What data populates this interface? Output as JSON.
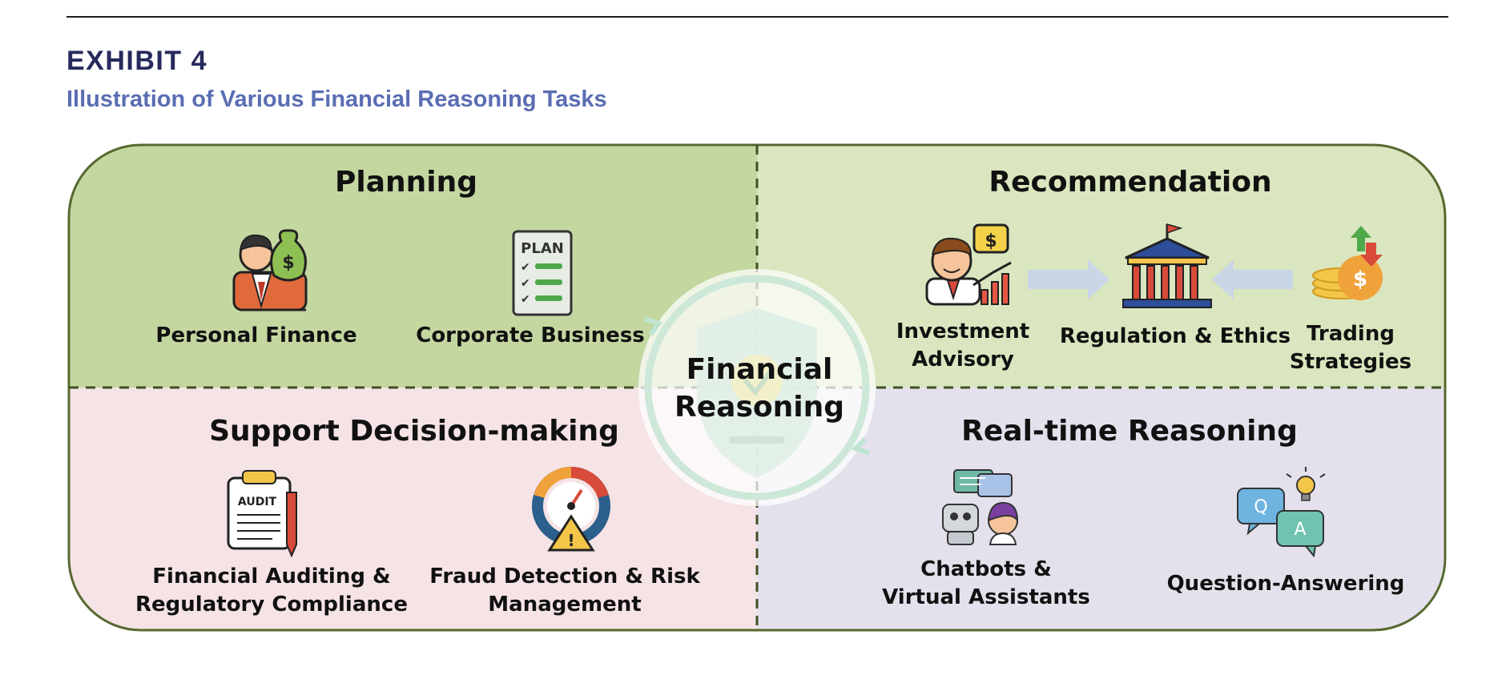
{
  "header": {
    "exhibit": "EXHIBIT 4",
    "subtitle": "Illustration of Various Financial Reasoning Tasks"
  },
  "center": {
    "line1": "Financial",
    "line2": "Reasoning"
  },
  "quadrants": {
    "planning": {
      "title": "Planning",
      "color": "#c4d7a1",
      "items": [
        {
          "label": "Personal Finance",
          "icon": "businessman-money-bag-icon"
        },
        {
          "label": "Corporate Business",
          "icon": "plan-checklist-icon",
          "icon_text": "PLAN"
        }
      ]
    },
    "recommendation": {
      "title": "Recommendation",
      "color": "#dae6bf",
      "items": [
        {
          "label_line1": "Investment",
          "label_line2": "Advisory",
          "icon": "advisor-growth-chart-icon"
        },
        {
          "label": "Regulation & Ethics",
          "icon": "bank-building-icon"
        },
        {
          "label_line1": "Trading",
          "label_line2": "Strategies",
          "icon": "coins-arrows-icon"
        }
      ]
    },
    "support": {
      "title": "Support Decision-making",
      "color": "#f5e3e5",
      "items": [
        {
          "label_line1": "Financial Auditing &",
          "label_line2": "Regulatory Compliance",
          "icon": "audit-clipboard-icon",
          "icon_text": "AUDIT"
        },
        {
          "label_line1": "Fraud Detection & Risk",
          "label_line2": "Management",
          "icon": "risk-gauge-warning-icon"
        }
      ]
    },
    "realtime": {
      "title": "Real-time Reasoning",
      "color": "#e4e1ec",
      "items": [
        {
          "label_line1": "Chatbots &",
          "label_line2": "Virtual Assistants",
          "icon": "chatbot-assistant-icon"
        },
        {
          "label": "Question-Answering",
          "icon": "qa-bubbles-icon",
          "q": "Q",
          "a": "A"
        }
      ]
    }
  }
}
